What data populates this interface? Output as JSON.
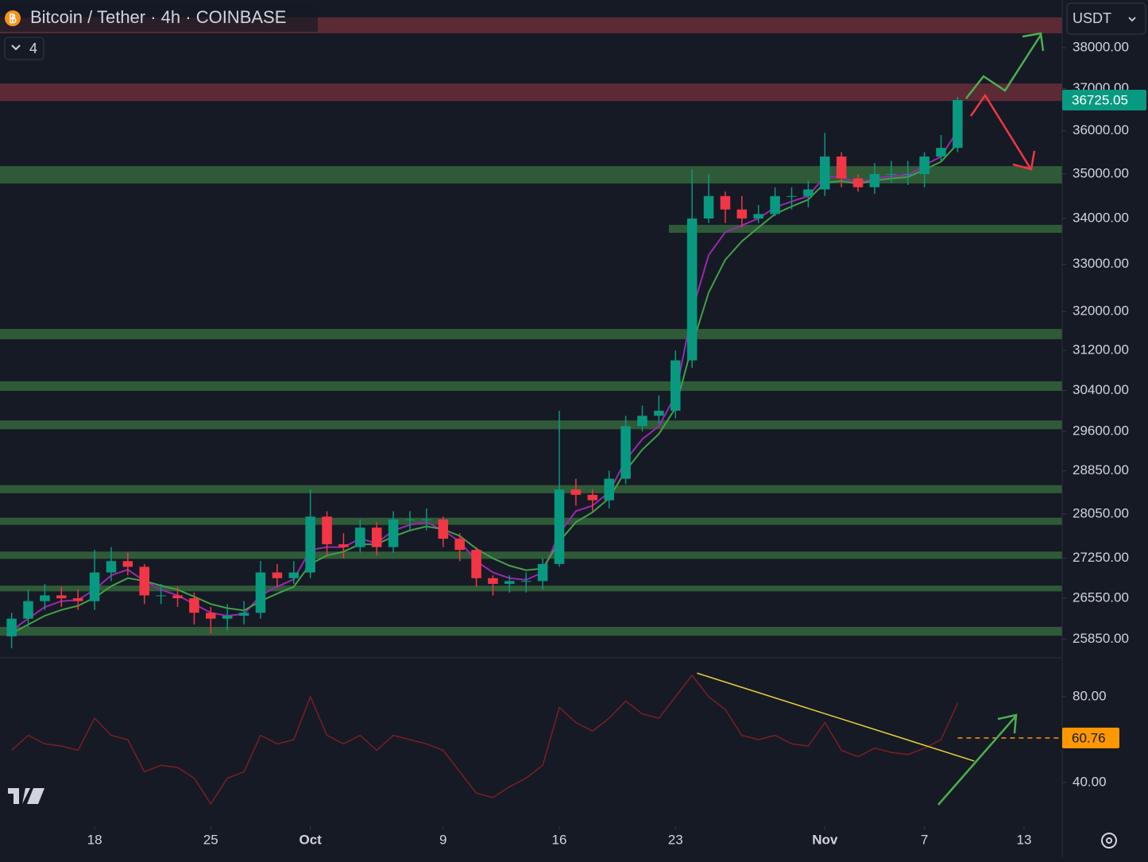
{
  "chart_data": {
    "type": "candlestick",
    "title": "Bitcoin / Tether · 4h · COINBASE",
    "indicators": 4,
    "currency": "USDT",
    "log_scale": true,
    "xlim": [
      12.3,
      76.3
    ],
    "xticks": [
      18,
      25,
      {
        "value": 31,
        "label": "Oct"
      },
      {
        "value": 39,
        "label": "9"
      },
      {
        "value": 46,
        "label": "16"
      },
      {
        "value": 53,
        "label": "23"
      },
      {
        "value": 62,
        "label": "Nov"
      },
      {
        "value": 68,
        "label": "7"
      },
      {
        "value": 74,
        "label": "13"
      }
    ],
    "ylim": [
      25540,
      39200
    ],
    "yticks": [
      {
        "value": 38000,
        "label": "38000.00"
      },
      {
        "value": 37000,
        "label": "37000.00"
      },
      {
        "value": 36000,
        "label": "36000.00"
      },
      {
        "value": 35000,
        "label": "35000.00"
      },
      {
        "value": 34000,
        "label": "34000.00"
      },
      {
        "value": 33000,
        "label": "33000.00"
      },
      {
        "value": 32000,
        "label": "32000.00"
      },
      {
        "value": 31200,
        "label": "31200.00"
      },
      {
        "value": 30400,
        "label": "30400.00"
      },
      {
        "value": 29600,
        "label": "29600.00"
      },
      {
        "value": 28850,
        "label": "28850.00"
      },
      {
        "value": 28050,
        "label": "28050.00"
      },
      {
        "value": 27250,
        "label": "27250.00"
      },
      {
        "value": 26550,
        "label": "26550.00"
      },
      {
        "value": 25850,
        "label": "25850.00"
      }
    ],
    "up_color": "#089981",
    "down_color": "#f23645",
    "x": [
      13,
      14,
      15,
      16,
      17,
      18,
      19,
      20,
      21,
      22,
      23,
      24,
      25,
      26,
      27,
      28,
      29,
      30,
      31,
      32,
      33,
      34,
      35,
      36,
      37,
      38,
      39,
      40,
      41,
      42,
      43,
      44,
      45,
      46,
      47,
      48,
      49,
      50,
      51,
      52,
      53,
      54,
      55,
      56,
      57,
      58,
      59,
      60,
      61,
      62,
      63,
      64,
      65,
      66,
      67,
      68,
      69,
      70
    ],
    "open": [
      25900,
      26200,
      26500,
      26600,
      26550,
      26500,
      27000,
      27200,
      27100,
      26600,
      26600,
      26550,
      26300,
      26200,
      26250,
      26300,
      27000,
      26900,
      27000,
      28000,
      27500,
      27450,
      27800,
      27450,
      27950,
      27950,
      27950,
      27600,
      27400,
      26900,
      26800,
      26850,
      26850,
      27150,
      28500,
      28400,
      28300,
      28700,
      29700,
      29900,
      30000,
      31000,
      34000,
      34500,
      34200,
      34000,
      34100,
      34500,
      34500,
      34650,
      35400,
      34900,
      34700,
      35000,
      35000,
      35000,
      35400,
      35600
    ],
    "high": [
      26300,
      26700,
      26800,
      26750,
      26700,
      27400,
      27450,
      27350,
      27150,
      26800,
      26750,
      26650,
      26400,
      26450,
      26500,
      27200,
      27150,
      27200,
      28500,
      28100,
      27700,
      27950,
      27900,
      28100,
      28100,
      28150,
      28000,
      27700,
      27450,
      26950,
      26950,
      27000,
      27250,
      30000,
      28700,
      28500,
      28850,
      29900,
      30100,
      30300,
      31200,
      35100,
      35000,
      34600,
      34500,
      34300,
      34700,
      34700,
      34850,
      35950,
      35500,
      35000,
      35250,
      35300,
      35300,
      35500,
      35900,
      36800
    ],
    "low": [
      25700,
      26050,
      26350,
      26400,
      26350,
      26350,
      26850,
      26950,
      26450,
      26450,
      26400,
      26100,
      25950,
      26000,
      26100,
      26200,
      26750,
      26800,
      26900,
      27300,
      27250,
      27350,
      27300,
      27350,
      27750,
      27750,
      27450,
      27200,
      26750,
      26600,
      26650,
      26650,
      26700,
      27100,
      28200,
      28100,
      28150,
      28600,
      29600,
      29750,
      29850,
      30850,
      33900,
      33900,
      33800,
      33900,
      34050,
      34200,
      34250,
      34500,
      34700,
      34600,
      34550,
      34800,
      34750,
      34700,
      35300,
      35500
    ],
    "close": [
      26200,
      26500,
      26600,
      26550,
      26500,
      27000,
      27200,
      27100,
      26600,
      26600,
      26550,
      26300,
      26200,
      26250,
      26300,
      27000,
      26900,
      27000,
      28000,
      27500,
      27450,
      27800,
      27450,
      27950,
      27950,
      27950,
      27600,
      27400,
      26900,
      26800,
      26850,
      26850,
      27150,
      28500,
      28400,
      28300,
      28700,
      29700,
      29900,
      30000,
      31000,
      34000,
      34500,
      34200,
      34000,
      34100,
      34500,
      34500,
      34650,
      35400,
      34900,
      34700,
      35000,
      35000,
      35000,
      35400,
      35600,
      36725.05
    ],
    "lines": [
      {
        "color": "#9c27b0",
        "values": [
          26000,
          26200,
          26400,
          26500,
          26520,
          26700,
          26950,
          27050,
          26850,
          26700,
          26600,
          26450,
          26300,
          26250,
          26280,
          26600,
          26750,
          26880,
          27400,
          27450,
          27450,
          27600,
          27520,
          27750,
          27850,
          27900,
          27750,
          27550,
          27200,
          27000,
          26900,
          26870,
          27000,
          27700,
          28100,
          28200,
          28450,
          29050,
          29450,
          29700,
          30300,
          32000,
          33200,
          33700,
          33850,
          34000,
          34250,
          34380,
          34500,
          34950,
          34920,
          34800,
          34900,
          34950,
          34970,
          35200,
          35400,
          36000
        ]
      },
      {
        "color": "#43a047",
        "values": [
          25950,
          26100,
          26250,
          26350,
          26420,
          26560,
          26760,
          26900,
          26850,
          26770,
          26700,
          26580,
          26450,
          26380,
          26340,
          26500,
          26630,
          26750,
          27150,
          27300,
          27370,
          27500,
          27500,
          27640,
          27750,
          27820,
          27770,
          27650,
          27420,
          27250,
          27120,
          27040,
          27070,
          27550,
          27900,
          28080,
          28340,
          28850,
          29250,
          29550,
          30050,
          31300,
          32400,
          33100,
          33500,
          33800,
          34100,
          34270,
          34420,
          34800,
          34840,
          34780,
          34850,
          34900,
          34930,
          35100,
          35280,
          35700
        ]
      }
    ],
    "zones": [
      {
        "low": 38360,
        "high": 38760,
        "color": "#5c2a35"
      },
      {
        "low": 36705,
        "high": 37125,
        "color": "#5c2a35"
      },
      {
        "low": 34785,
        "high": 35180,
        "color": "#2f5a38"
      },
      {
        "low": 33685,
        "high": 33860,
        "color": "#2f5a38",
        "x_start": 52.6
      },
      {
        "low": 31430,
        "high": 31640,
        "color": "#2f5a38"
      },
      {
        "low": 30390,
        "high": 30580,
        "color": "#2f5a38"
      },
      {
        "low": 29640,
        "high": 29810,
        "color": "#2f5a38"
      },
      {
        "low": 28430,
        "high": 28580,
        "color": "#2f5a38"
      },
      {
        "low": 27850,
        "high": 27980,
        "color": "#2f5a38"
      },
      {
        "low": 27240,
        "high": 27370,
        "color": "#2f5a38"
      },
      {
        "low": 26670,
        "high": 26770,
        "color": "#2f5a38"
      },
      {
        "low": 25910,
        "high": 26060,
        "color": "#2f5a38"
      }
    ],
    "last_price": 36725.05,
    "last_price_color": "#089981",
    "rsi": {
      "color": "#7a1f22",
      "ylim": [
        19.6,
        97.4
      ],
      "yticks": [
        {
          "value": 80,
          "label": "80.00"
        },
        {
          "value": 40,
          "label": "40.00"
        }
      ],
      "values": [
        55,
        62,
        58,
        57,
        55,
        70,
        62,
        60,
        45,
        48,
        47,
        42,
        30,
        42,
        45,
        62,
        58,
        60,
        80,
        62,
        58,
        62,
        55,
        62,
        60,
        58,
        55,
        45,
        35,
        33,
        38,
        42,
        48,
        75,
        68,
        64,
        70,
        78,
        72,
        70,
        80,
        90,
        80,
        74,
        62,
        60,
        62,
        58,
        57,
        68,
        55,
        52,
        56,
        54,
        53,
        56,
        60,
        77
      ],
      "last": 60.76,
      "last_color": "#ff9800",
      "trendline": {
        "x": [
          54.3,
          71
        ],
        "y": [
          91,
          50
        ],
        "color": "#e6d33a"
      }
    }
  }
}
